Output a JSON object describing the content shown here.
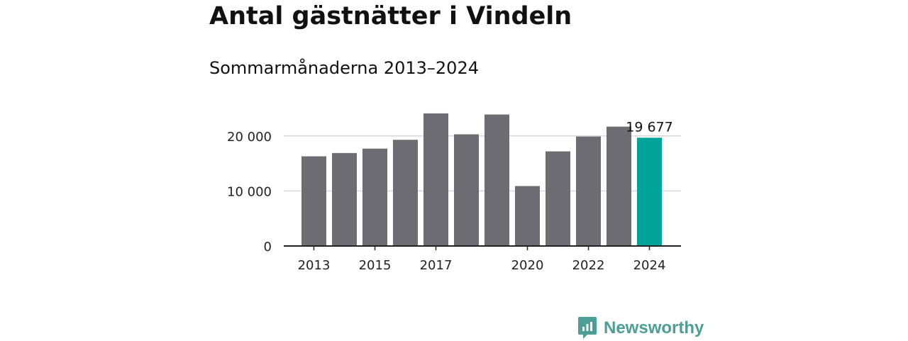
{
  "title": "Antal gästnätter i Vindeln",
  "subtitle": "Sommarmånaderna 2013–2024",
  "colors": {
    "bar": "#6d6c72",
    "highlight": "#00a39a",
    "grid": "#d9d9d9",
    "axis": "#222222",
    "brand": "#4c9e96"
  },
  "brand": {
    "name": "Newsworthy",
    "icon": "newsworthy-logo-icon"
  },
  "chart_data": {
    "type": "bar",
    "categories": [
      "2013",
      "2014",
      "2015",
      "2016",
      "2017",
      "2018",
      "2019",
      "2020",
      "2021",
      "2022",
      "2023",
      "2024"
    ],
    "x_tick_labels": [
      "2013",
      "",
      "2015",
      "",
      "2017",
      "",
      "",
      "2020",
      "",
      "2022",
      "",
      "2024"
    ],
    "values": [
      16300,
      16900,
      17700,
      19300,
      24100,
      20300,
      23900,
      10900,
      17200,
      19900,
      21700,
      19677
    ],
    "highlight_index": 11,
    "data_labels": [
      {
        "index": 11,
        "text": "19 677"
      }
    ],
    "y_ticks": [
      {
        "value": 0,
        "label": "0"
      },
      {
        "value": 10000,
        "label": "10 000"
      },
      {
        "value": 20000,
        "label": "20 000"
      }
    ],
    "ylim": [
      0,
      25000
    ],
    "grid": true,
    "legend": "none"
  }
}
